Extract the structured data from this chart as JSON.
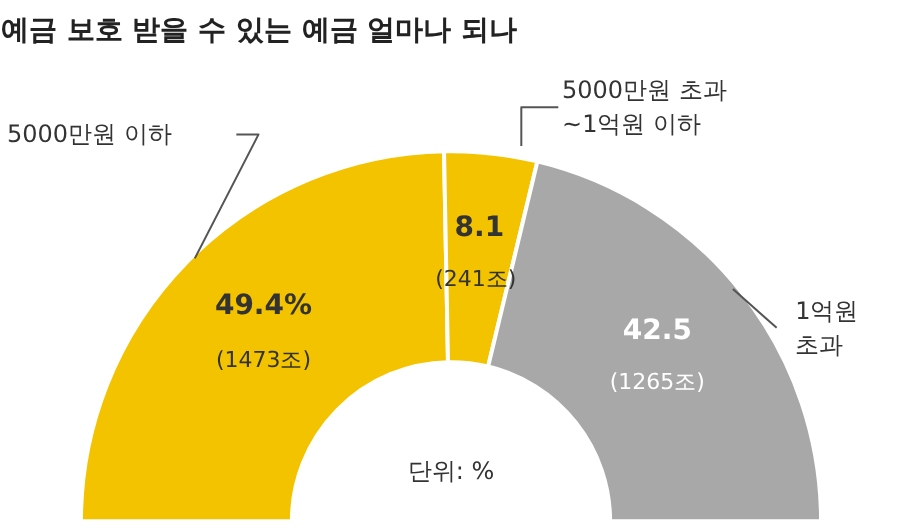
{
  "chart_data": {
    "type": "donut",
    "title": "예금 보호 받을 수 있는 예금 얼마나 되나",
    "categories": [
      "5000만원 이하",
      "5000만원 초과\n~1억원 이하",
      "1억원\n초과"
    ],
    "values": [
      49.4,
      8.1,
      42.5
    ],
    "colors": [
      "#f3c300",
      "#f3c300",
      "#a8a8a8"
    ],
    "value_labels": [
      "49.4%\n(1473조)",
      "8.1\n(241조)",
      "42.5\n(1265조)"
    ],
    "annotations": [
      "단위: %"
    ]
  }
}
